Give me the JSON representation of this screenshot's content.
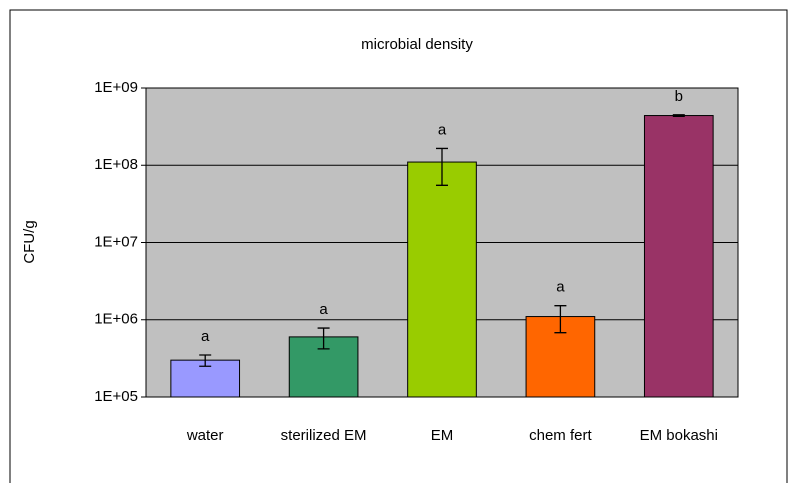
{
  "chart_data": {
    "type": "bar",
    "title": "microbial density",
    "y_label": "CFU/g",
    "categories": [
      "water",
      "sterilized EM",
      "EM",
      "chem fert",
      "EM bokashi"
    ],
    "values": [
      300000,
      600000,
      110000000,
      1100000,
      440000000
    ],
    "errors": [
      50000,
      180000,
      55000000,
      420000,
      10000000
    ],
    "annotations": [
      "a",
      "a",
      "a",
      "a",
      "b"
    ],
    "colors": [
      "#9999ff",
      "#339966",
      "#99cc00",
      "#ff6600",
      "#993366"
    ],
    "ylim": [
      100000,
      1000000000
    ],
    "yticks": [
      {
        "value": 100000,
        "label": "1E+05"
      },
      {
        "value": 1000000,
        "label": "1E+06"
      },
      {
        "value": 10000000,
        "label": "1E+07"
      },
      {
        "value": 100000000,
        "label": "1E+08"
      },
      {
        "value": 1000000000,
        "label": "1E+09"
      }
    ],
    "log_scale": true,
    "grid": true,
    "plot_background": "#c0c0c0"
  }
}
